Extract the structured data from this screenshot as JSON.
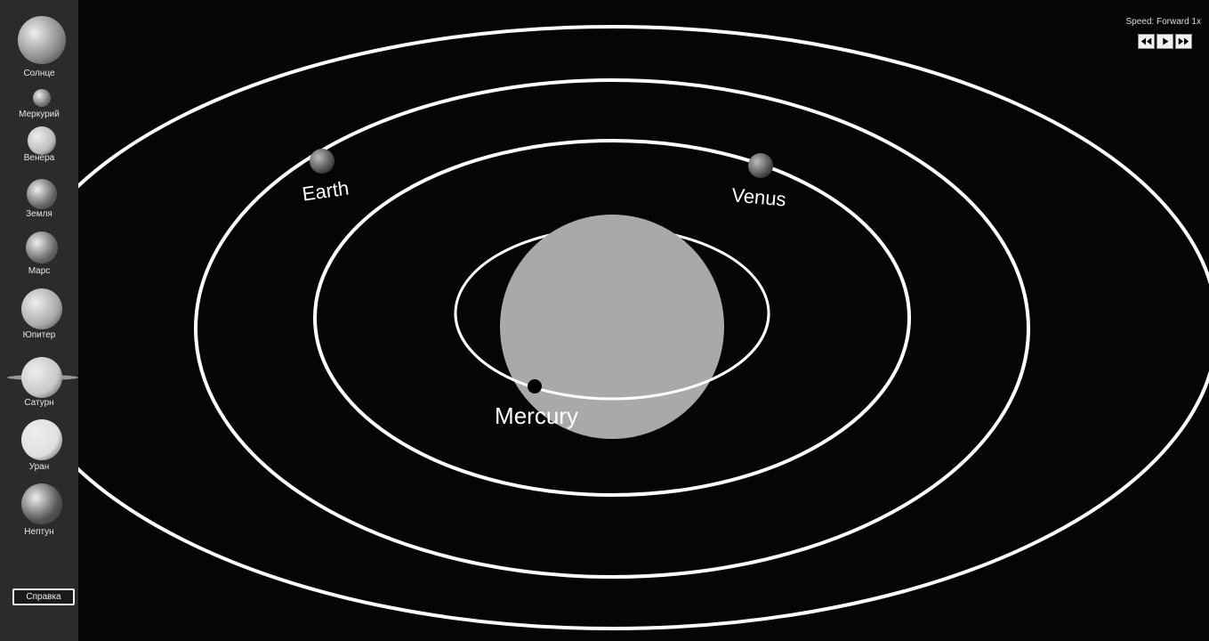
{
  "sidebar": {
    "planets": [
      "Солнце",
      "Меркурий",
      "Венера",
      "Земля",
      "Марс",
      "Юпитер",
      "Сатурн",
      "Уран",
      "Нептун"
    ],
    "help_button": "Справка"
  },
  "speed": "Speed: Forward 1x",
  "scene": {
    "labels": {
      "earth": "Earth",
      "venus": "Venus",
      "mercury": "Mercury"
    }
  }
}
